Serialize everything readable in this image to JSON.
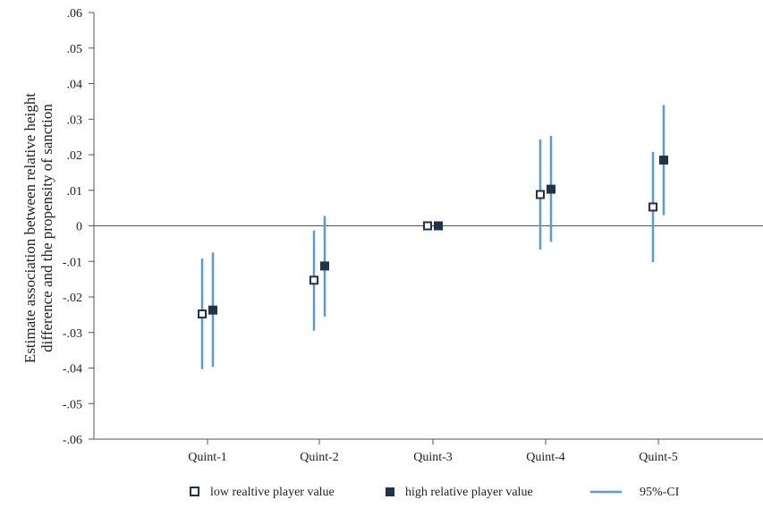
{
  "chart_data": {
    "type": "scatter",
    "ylabel_lines": [
      "Estimate association between relative height",
      "difference and the propensity of sanction"
    ],
    "xlabel": "",
    "categories": [
      "Quint-1",
      "Quint-2",
      "Quint-3",
      "Quint-4",
      "Quint-5"
    ],
    "ylim": [
      -0.06,
      0.06
    ],
    "yticks": [
      ".06",
      ".05",
      ".04",
      ".03",
      ".02",
      ".01",
      "0",
      "-.01",
      "-.02",
      "-.03",
      "-.04",
      "-.05",
      "-.06"
    ],
    "ytick_values": [
      0.06,
      0.05,
      0.04,
      0.03,
      0.02,
      0.01,
      0,
      -0.01,
      -0.02,
      -0.03,
      -0.04,
      -0.05,
      -0.06
    ],
    "series": [
      {
        "name": "low realtive player value",
        "marker": "hollow-square",
        "values": [
          -0.0248,
          -0.0153,
          0.0,
          0.0088,
          0.0053
        ],
        "ci_low": [
          -0.0403,
          -0.0295,
          0.0,
          -0.0067,
          -0.0102
        ],
        "ci_high": [
          -0.0092,
          -0.0013,
          0.0,
          0.0243,
          0.0208
        ]
      },
      {
        "name": "high relative player value",
        "marker": "filled-square",
        "values": [
          -0.0237,
          -0.0113,
          0.0,
          0.0103,
          0.0185
        ],
        "ci_low": [
          -0.0397,
          -0.0255,
          0.0,
          -0.0045,
          0.003
        ],
        "ci_high": [
          -0.0075,
          0.0028,
          0.0,
          0.0253,
          0.034
        ]
      }
    ],
    "ci_label": "95%-CI",
    "colors": {
      "ci": "#5b9bd5",
      "marker": "#1f3349",
      "axis": "#555555"
    },
    "grid": false,
    "zero_line": true,
    "legend_position": "bottom"
  }
}
